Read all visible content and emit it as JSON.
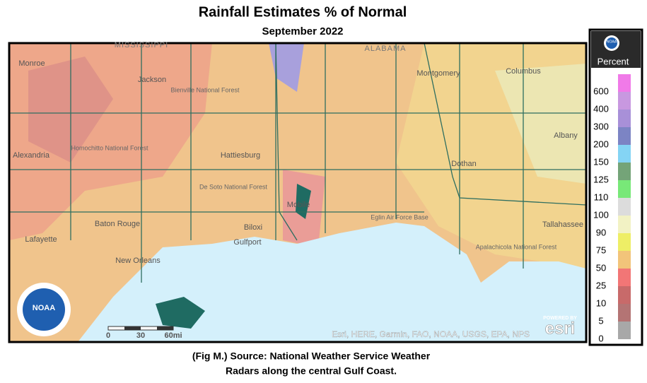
{
  "header": {
    "title": "Rainfall Estimates % of Normal",
    "subtitle": "September 2022"
  },
  "map": {
    "states": [
      "MISSISSIPPI",
      "ALABAMA"
    ],
    "cities": [
      "Monroe",
      "Jackson",
      "Alexandria",
      "Hattiesburg",
      "Montgomery",
      "Columbus",
      "Albany",
      "Dothan",
      "Mobile",
      "Baton Rouge",
      "Biloxi",
      "Gulfport",
      "Lafayette",
      "New Orleans",
      "Tallahassee"
    ],
    "places": [
      "Bienville National Forest",
      "Homochitto National Forest",
      "De Soto National Forest",
      "Eglin Air Force Base",
      "Apalachicola National Forest"
    ],
    "scale": [
      "0",
      "30",
      "60mi"
    ],
    "attribution": "Esri, HERE, Garmin, FAO, NOAA, USGS, EPA, NPS",
    "powered": "POWERED BY",
    "esri": "esri",
    "logo": "NOAA"
  },
  "legend": {
    "title": "Percent",
    "logo": "NOAA",
    "items": [
      {
        "label": "600",
        "color": "#f07ae8"
      },
      {
        "label": "400",
        "color": "#c898e0"
      },
      {
        "label": "300",
        "color": "#a890d8"
      },
      {
        "label": "200",
        "color": "#7c84c4"
      },
      {
        "label": "150",
        "color": "#84d4f4"
      },
      {
        "label": "125",
        "color": "#74a478"
      },
      {
        "label": "110",
        "color": "#78e878"
      },
      {
        "label": "100",
        "color": "#dcdcdc"
      },
      {
        "label": "90",
        "color": "#f2f2c4"
      },
      {
        "label": "75",
        "color": "#eeee66"
      },
      {
        "label": "50",
        "color": "#f2c47a"
      },
      {
        "label": "25",
        "color": "#f27676"
      },
      {
        "label": "10",
        "color": "#c86a6a"
      },
      {
        "label": "5",
        "color": "#b47474"
      },
      {
        "label": "0",
        "color": "#a8a8a8"
      }
    ]
  },
  "caption": [
    "(Fig M.) Source: National Weather Service Weather",
    "Radars along the central Gulf Coast."
  ]
}
